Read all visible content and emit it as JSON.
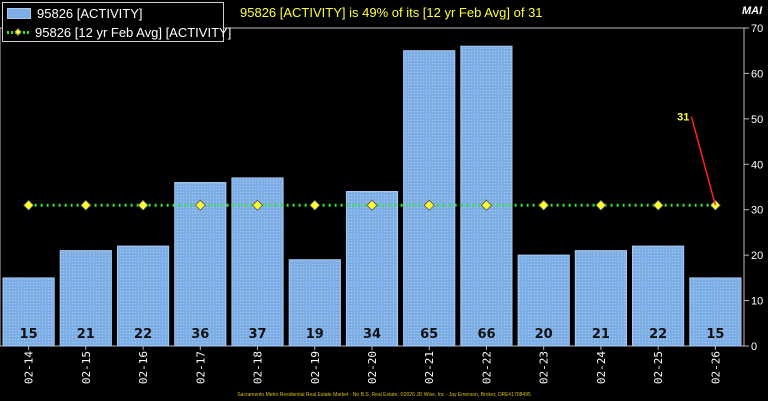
{
  "legend": {
    "bar_label": "95826 [ACTIVITY]",
    "line_label": "95826 [12 yr Feb Avg] [ACTIVITY]"
  },
  "headline": "95826 [ACTIVITY] is 49% of its [12 yr Feb Avg] of 31",
  "axis_title": "MAI",
  "footer": "Sacramento Metro Residential Real Estate Market - No B.S. Real Estate, ©2026 JD Wise, Inc - Jay Emerson, Broker, DRE#1708495",
  "colors": {
    "bar_fill": "#7eaee6",
    "bar_edge": "#a8c8f0",
    "avg_line": "#2ee82e",
    "marker": "#ffff33",
    "callout": "#ff2020"
  },
  "chart_data": {
    "type": "bar",
    "categories": [
      "02-14",
      "02-15",
      "02-16",
      "02-17",
      "02-18",
      "02-19",
      "02-20",
      "02-21",
      "02-22",
      "02-23",
      "02-24",
      "02-25",
      "02-26"
    ],
    "series": [
      {
        "name": "95826 [ACTIVITY]",
        "type": "bar",
        "values": [
          15,
          21,
          22,
          36,
          37,
          19,
          34,
          65,
          66,
          20,
          21,
          22,
          15
        ]
      },
      {
        "name": "95826 [12 yr Feb Avg] [ACTIVITY]",
        "type": "line",
        "values": [
          31,
          31,
          31,
          31,
          31,
          31,
          31,
          31,
          31,
          31,
          31,
          31,
          31
        ]
      }
    ],
    "data_labels": [
      "15",
      "21",
      "22",
      "36",
      "37",
      "19",
      "34",
      "65",
      "66",
      "20",
      "21",
      "22",
      "15"
    ],
    "callout": {
      "text": "31",
      "category": "02-26",
      "value": 31
    },
    "ylim": [
      0,
      70
    ],
    "yticks": [
      0,
      10,
      20,
      30,
      40,
      50,
      60,
      70
    ],
    "y_axis_position": "right",
    "grid": false,
    "legend_position": "top-left"
  }
}
